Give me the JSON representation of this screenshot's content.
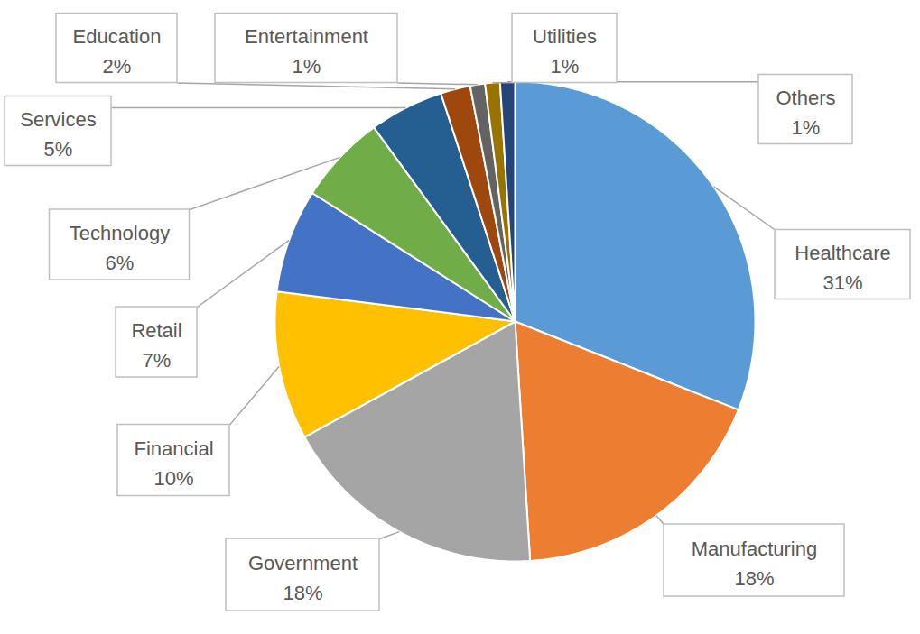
{
  "chart_data": {
    "type": "pie",
    "categories": [
      "Healthcare",
      "Manufacturing",
      "Government",
      "Financial",
      "Retail",
      "Technology",
      "Services",
      "Education",
      "Entertainment",
      "Utilities",
      "Others"
    ],
    "values": [
      31,
      18,
      18,
      10,
      7,
      6,
      5,
      2,
      1,
      1,
      1
    ],
    "value_labels": [
      "31%",
      "18%",
      "18%",
      "10%",
      "7%",
      "6%",
      "5%",
      "2%",
      "1%",
      "1%",
      "1%"
    ],
    "colors": [
      "#5b9bd5",
      "#ed7d31",
      "#a5a5a5",
      "#ffc000",
      "#4472c4",
      "#70ad47",
      "#255e91",
      "#9e480e",
      "#636363",
      "#997300",
      "#264478"
    ],
    "data_labels": true
  }
}
